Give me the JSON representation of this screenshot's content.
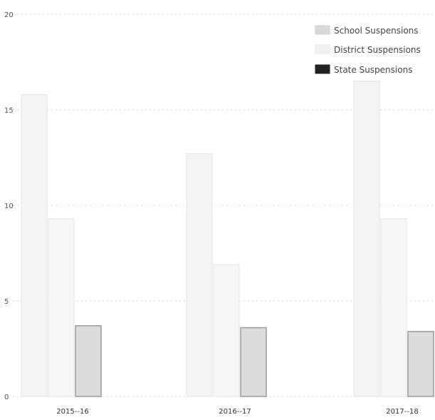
{
  "chart_data": {
    "type": "bar",
    "categories": [
      "2015--16",
      "2016--17",
      "2017--18"
    ],
    "series": [
      {
        "name": "School Suspensions",
        "values": [
          15.8,
          12.7,
          16.5
        ]
      },
      {
        "name": "District Suspensions",
        "values": [
          9.3,
          6.9,
          9.3
        ]
      },
      {
        "name": "State Suspensions",
        "values": [
          3.7,
          3.6,
          3.4
        ]
      }
    ],
    "ylim": [
      0,
      20
    ],
    "yticks": [
      "0",
      "5",
      "10",
      "15",
      "20"
    ],
    "title": "",
    "xlabel": "",
    "ylabel": "",
    "grid": true,
    "legend_position": "top-right",
    "colors": {
      "school_fill": "#f4f4f4",
      "school_stroke": "#e2e2e2",
      "district_fill": "#f7f7f7",
      "district_stroke": "#e6e6e6",
      "state_fill": "#dcdcdc",
      "state_stroke": "#9a9a9a",
      "grid": "#d6d6d6",
      "legend_state_swatch": "#222222"
    }
  }
}
